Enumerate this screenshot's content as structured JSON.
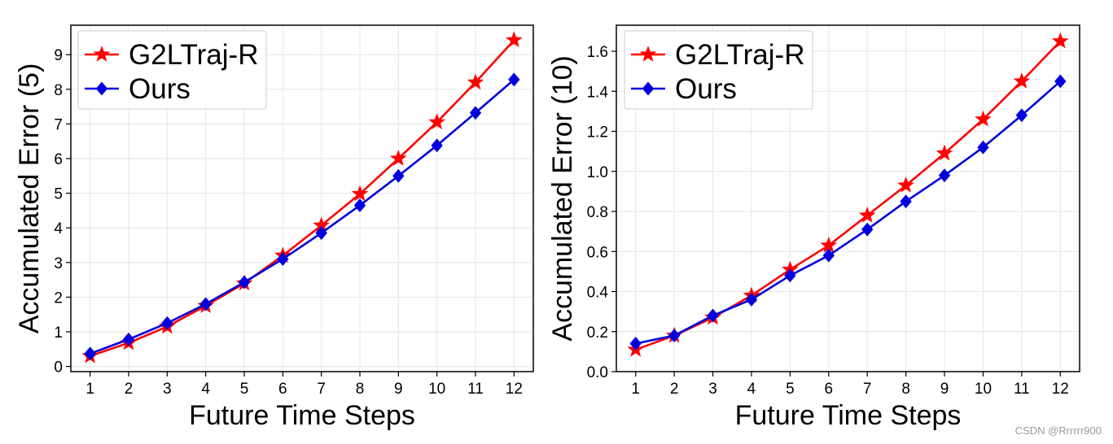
{
  "chart_data": [
    {
      "type": "line",
      "xlabel": "Future Time Steps",
      "ylabel": "Accumulated Error (5)",
      "x": [
        1,
        2,
        3,
        4,
        5,
        6,
        7,
        8,
        9,
        10,
        11,
        12
      ],
      "xlim": [
        0.5,
        12.5
      ],
      "ylim": [
        -0.15,
        9.85
      ],
      "yticks": [
        0,
        1,
        2,
        3,
        4,
        5,
        6,
        7,
        8,
        9
      ],
      "ytick_labels": [
        "0",
        "1",
        "2",
        "3",
        "4",
        "5",
        "6",
        "7",
        "8",
        "9"
      ],
      "grid": true,
      "legend_position": "upper-left",
      "series": [
        {
          "name": "G2LTraj-R",
          "color": "#ff0000",
          "marker": "star",
          "values": [
            0.3,
            0.68,
            1.15,
            1.75,
            2.4,
            3.2,
            4.07,
            4.98,
            6.0,
            7.05,
            8.2,
            9.42
          ]
        },
        {
          "name": "Ours",
          "color": "#0000dd",
          "marker": "diamond",
          "values": [
            0.37,
            0.78,
            1.25,
            1.8,
            2.43,
            3.1,
            3.85,
            4.65,
            5.5,
            6.38,
            7.32,
            8.28
          ]
        }
      ]
    },
    {
      "type": "line",
      "xlabel": "Future Time Steps",
      "ylabel": "Accumulated Error (10)",
      "x": [
        1,
        2,
        3,
        4,
        5,
        6,
        7,
        8,
        9,
        10,
        11,
        12
      ],
      "xlim": [
        0.5,
        12.5
      ],
      "ylim": [
        0.0,
        1.73
      ],
      "yticks": [
        0.0,
        0.2,
        0.4,
        0.6,
        0.8,
        1.0,
        1.2,
        1.4,
        1.6
      ],
      "ytick_labels": [
        "0.0",
        "0.2",
        "0.4",
        "0.6",
        "0.8",
        "1.0",
        "1.2",
        "1.4",
        "1.6"
      ],
      "grid": true,
      "legend_position": "upper-left",
      "series": [
        {
          "name": "G2LTraj-R",
          "color": "#ff0000",
          "marker": "star",
          "values": [
            0.11,
            0.18,
            0.27,
            0.38,
            0.51,
            0.63,
            0.78,
            0.93,
            1.09,
            1.26,
            1.45,
            1.65
          ]
        },
        {
          "name": "Ours",
          "color": "#0000dd",
          "marker": "diamond",
          "values": [
            0.14,
            0.18,
            0.28,
            0.36,
            0.48,
            0.58,
            0.71,
            0.85,
            0.98,
            1.12,
            1.28,
            1.45
          ]
        }
      ]
    }
  ],
  "watermark": "CSDN @Rrrrrr900"
}
